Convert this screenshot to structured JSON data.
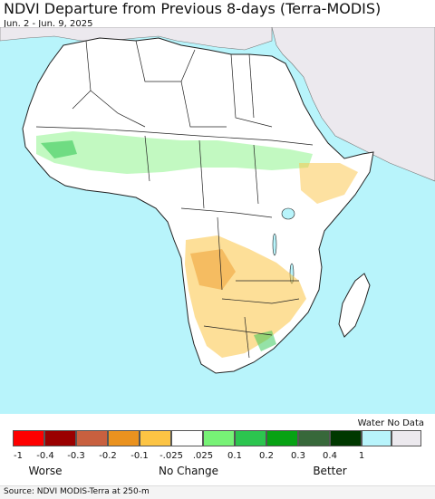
{
  "title": "NDVI Departure from Previous 8-days (Terra-MODIS)",
  "subtitle": "Jun. 2 - Jun. 9, 2025",
  "legend": {
    "water_label": "Water No Data",
    "swatches": [
      {
        "color": "#fe0000",
        "label": "-1"
      },
      {
        "color": "#9a0000",
        "label": "-0.4"
      },
      {
        "color": "#c8603f",
        "label": "-0.3"
      },
      {
        "color": "#ea921f",
        "label": "-0.2"
      },
      {
        "color": "#fcc444",
        "label": "-0.1"
      },
      {
        "color": "#ffffff",
        "label": "-.025 .025"
      },
      {
        "color": "#77f276",
        "label": "0.1"
      },
      {
        "color": "#2cc54f",
        "label": "0.2"
      },
      {
        "color": "#07a214",
        "label": "0.3"
      },
      {
        "color": "#37683a",
        "label": "0.4"
      },
      {
        "color": "#003800",
        "label": "1"
      },
      {
        "color": "#b8f4fb",
        "label": ""
      },
      {
        "color": "#ece9ee",
        "label": ""
      }
    ],
    "ticks": [
      "-1",
      "-0.4",
      "-0.3",
      "-0.2",
      "-0.1",
      "-.025",
      ".025",
      "0.1",
      "0.2",
      "0.3",
      "0.4",
      "1"
    ],
    "categories": {
      "worse": "Worse",
      "no_change": "No Change",
      "better": "Better"
    }
  },
  "source": "Source: NDVI MODIS-Terra at 250-m",
  "colors": {
    "ocean": "#b8f4fb",
    "land_no_data": "#ece9ee",
    "africa_land": "#ffffff",
    "border": "#222222"
  }
}
